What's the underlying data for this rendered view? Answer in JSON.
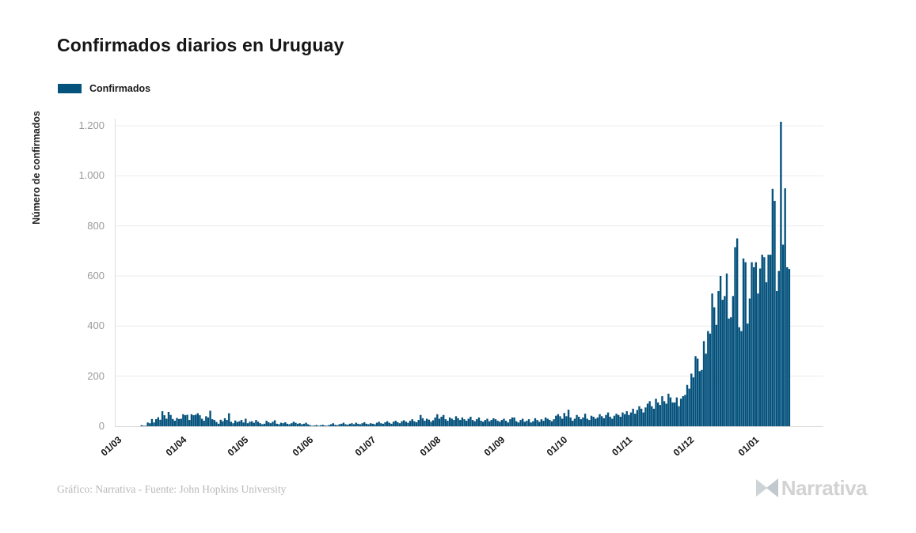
{
  "title": "Confirmados diarios en Uruguay",
  "legend": {
    "label": "Confirmados",
    "color": "#05527c"
  },
  "footer": {
    "credit": "Gráfico: Narrativa - Fuente: John Hopkins University"
  },
  "brand": {
    "name": "Narrativa"
  },
  "chart_data": {
    "type": "bar",
    "title": "Confirmados diarios en Uruguay",
    "series_name": "Confirmados",
    "xlabel": "",
    "ylabel": "Número de confirmados",
    "ylim": [
      0,
      1200
    ],
    "y_ticks": [
      0,
      200,
      400,
      600,
      800,
      1000,
      1200
    ],
    "y_tick_labels": [
      "0",
      "200",
      "400",
      "600",
      "800",
      "1.000",
      "1.200"
    ],
    "x_tick_labels": [
      "01/03",
      "01/04",
      "01/05",
      "01/06",
      "01/07",
      "01/08",
      "01/09",
      "01/10",
      "01/11",
      "01/12",
      "01/01"
    ],
    "grid": "horizontal",
    "legend_position": "top-left",
    "bar_color": "#05527c",
    "gridline_color": "#ececec",
    "start_date": "2020-03-01",
    "frequency": "daily",
    "values": [
      0,
      0,
      0,
      0,
      0,
      0,
      0,
      0,
      0,
      0,
      0,
      0,
      4,
      2,
      2,
      15,
      12,
      29,
      15,
      28,
      36,
      26,
      60,
      44,
      30,
      57,
      45,
      29,
      22,
      33,
      29,
      30,
      48,
      44,
      46,
      25,
      48,
      44,
      46,
      52,
      44,
      30,
      22,
      40,
      35,
      62,
      28,
      25,
      17,
      10,
      26,
      20,
      32,
      25,
      52,
      18,
      12,
      23,
      17,
      20,
      25,
      15,
      30,
      12,
      18,
      20,
      14,
      25,
      18,
      12,
      8,
      10,
      22,
      16,
      12,
      18,
      24,
      10,
      8,
      14,
      12,
      16,
      10,
      8,
      12,
      18,
      14,
      10,
      12,
      8,
      10,
      14,
      8,
      4,
      2,
      3,
      5,
      2,
      4,
      6,
      3,
      2,
      5,
      8,
      12,
      6,
      4,
      8,
      10,
      14,
      8,
      6,
      10,
      12,
      8,
      14,
      10,
      8,
      12,
      16,
      10,
      8,
      12,
      10,
      8,
      14,
      18,
      12,
      10,
      16,
      20,
      14,
      10,
      18,
      22,
      16,
      12,
      20,
      24,
      18,
      14,
      22,
      28,
      20,
      16,
      25,
      45,
      32,
      22,
      30,
      26,
      18,
      24,
      35,
      48,
      30,
      38,
      45,
      28,
      22,
      35,
      30,
      25,
      40,
      32,
      25,
      35,
      28,
      22,
      30,
      38,
      25,
      20,
      28,
      35,
      22,
      18,
      25,
      30,
      20,
      25,
      32,
      28,
      22,
      18,
      25,
      30,
      22,
      15,
      28,
      35,
      35,
      20,
      15,
      25,
      30,
      18,
      22,
      28,
      15,
      20,
      32,
      25,
      18,
      28,
      22,
      35,
      30,
      25,
      20,
      28,
      42,
      48,
      40,
      30,
      53,
      40,
      66,
      35,
      22,
      30,
      45,
      38,
      28,
      35,
      50,
      30,
      25,
      42,
      38,
      30,
      35,
      48,
      40,
      32,
      45,
      55,
      38,
      30,
      42,
      50,
      45,
      38,
      55,
      48,
      60,
      45,
      55,
      70,
      50,
      65,
      80,
      70,
      55,
      75,
      90,
      100,
      80,
      70,
      110,
      95,
      85,
      120,
      100,
      90,
      130,
      115,
      95,
      95,
      115,
      80,
      110,
      120,
      125,
      165,
      150,
      210,
      195,
      280,
      270,
      220,
      225,
      340,
      290,
      380,
      370,
      530,
      475,
      405,
      540,
      600,
      505,
      520,
      610,
      430,
      435,
      520,
      715,
      750,
      395,
      380,
      670,
      655,
      410,
      510,
      655,
      635,
      655,
      530,
      630,
      685,
      675,
      575,
      685,
      685,
      948,
      900,
      540,
      620,
      1216,
      725,
      950,
      635,
      628
    ]
  }
}
